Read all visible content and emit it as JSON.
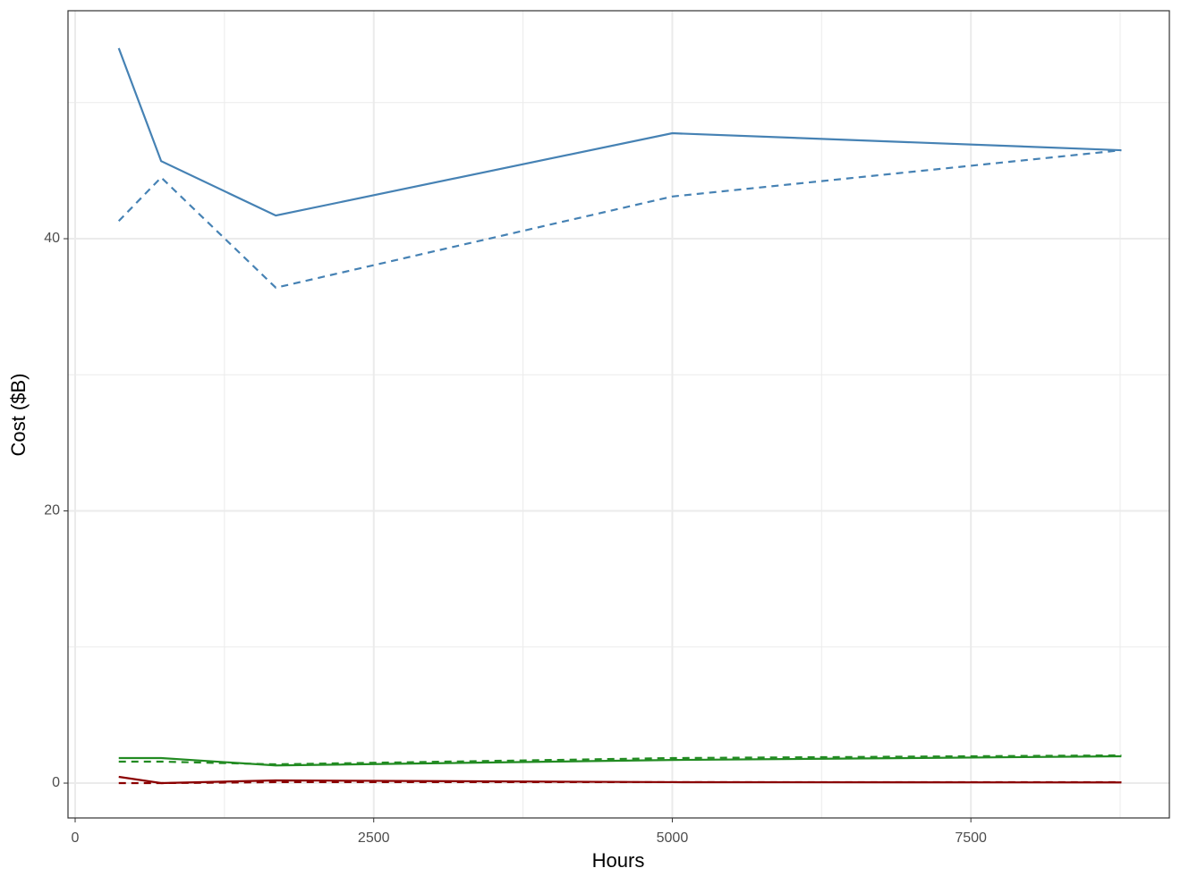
{
  "chart_data": {
    "type": "line",
    "x_label": "Hours",
    "y_label": "Cost ($B)",
    "x": [
      365,
      720,
      1680,
      5000,
      8760
    ],
    "series": [
      {
        "color": "#4682b4",
        "dash": "solid",
        "values": [
          54.0,
          45.7,
          41.7,
          47.75,
          46.5
        ]
      },
      {
        "color": "#4682b4",
        "dash": "dashed",
        "values": [
          41.3,
          44.5,
          36.4,
          43.1,
          46.5
        ]
      },
      {
        "color": "#228b22",
        "dash": "solid",
        "values": [
          1.84,
          1.84,
          1.3,
          1.7,
          1.97
        ]
      },
      {
        "color": "#228b22",
        "dash": "dashed",
        "values": [
          1.58,
          1.58,
          1.38,
          1.84,
          2.04
        ]
      },
      {
        "color": "#8b0000",
        "dash": "solid",
        "values": [
          0.46,
          0.0,
          0.2,
          0.07,
          0.05
        ]
      },
      {
        "color": "#8b0000",
        "dash": "dashed",
        "values": [
          0.0,
          0.0,
          0.07,
          0.07,
          0.07
        ]
      }
    ],
    "xlim": [
      -60,
      9162
    ],
    "xticks": [
      0,
      2500,
      5000,
      7500
    ],
    "xminor": [
      1250,
      3750,
      6250,
      8750
    ],
    "ylim": [
      -2.56,
      56.75
    ],
    "yticks": [
      0,
      20,
      40
    ],
    "yminor": [
      10,
      30,
      50
    ],
    "grid": true
  }
}
